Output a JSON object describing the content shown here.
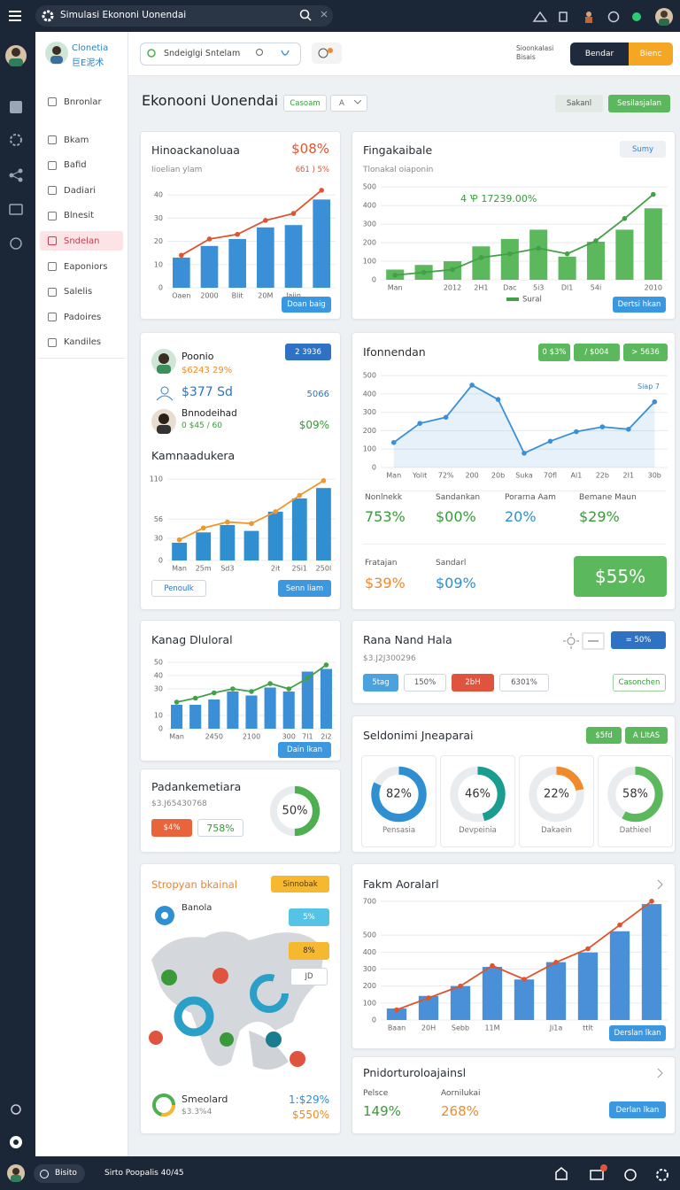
{
  "topbar": {
    "title": "Simulasi Ekononi Uonendai"
  },
  "sidebar": {
    "brand": "Clonetia",
    "brand_sub": "巨E泥术",
    "active": 5,
    "menu": [
      "Bnronlar",
      "Bkam",
      "Bafid",
      "Dadiari",
      "Blnesit",
      "Sndelan",
      "Eaponiors",
      "Salelis",
      "Padoires",
      "Kandiles"
    ]
  },
  "header": {
    "search": "Sndeiglgi Sntelam",
    "note": "Sioonkalasi Bisais",
    "buttons": [
      "Bendar",
      "Bienc"
    ]
  },
  "page": {
    "title": "Ekonooni Uonendai",
    "filter": "Casoam",
    "select": "A",
    "actions": [
      "Sakanl",
      "Sesilasjalan"
    ]
  },
  "profile_card": {
    "badge": "2 3936",
    "rows": [
      {
        "name": "Poonio",
        "value": "$6243 29%"
      },
      {
        "name": "$377 Sd",
        "value": "5066"
      },
      {
        "name": "Bnnodeihad",
        "value": "0 $45 / 60",
        "extra": "$09%"
      }
    ],
    "chart_title": "Kamnaadukera",
    "buttons": [
      "Penoulk",
      "Senn liam"
    ]
  },
  "stats_card": {
    "items": [
      {
        "label": "Nonlnekk",
        "value": "753%"
      },
      {
        "label": "Sandankan",
        "value": "$00%"
      },
      {
        "label": "Porarna Aam",
        "value": "20%"
      },
      {
        "label": "Bemane Maun",
        "value": "$29%"
      },
      {
        "label": "Fratajan",
        "value": "$39%"
      },
      {
        "label": "Sandarl",
        "value": "$09%"
      }
    ],
    "highlight": "$55%"
  },
  "padan_card": {
    "title": "Padankemetiara",
    "sub": "$3.J65430768",
    "chips": [
      "$4%",
      "758%"
    ]
  },
  "rana_card": {
    "title": "Rana Nand Hala",
    "sub": "$3.J2J300296",
    "chips": [
      "5tag",
      "150%",
      "2bH",
      "6301%"
    ],
    "button": "= 50%",
    "link": "Casonchen"
  },
  "seldon_card": {
    "title": "Seldonimi Jneaparai",
    "buttons": [
      "$5fd",
      "A LItAS"
    ]
  },
  "map_card": {
    "title": "Stropyan bkainal",
    "badge": "Sinnobak",
    "pin_label": "Banola",
    "chips": [
      "5%",
      "8%",
      "JD"
    ],
    "footer_name": "Smeolard",
    "footer_sub": "$3.3%4",
    "footer_values": [
      "1:$29%",
      "$550%"
    ]
  },
  "last_card": {
    "title": "Pnidorturoloajainsl",
    "items": [
      {
        "label": "Pelsce",
        "value": "149%"
      },
      {
        "label": "Aornilukai",
        "value": "268%"
      }
    ],
    "button": "Derlan lkan"
  },
  "charts": [
    {
      "type": "bar",
      "title": "Hinoackanoluaa",
      "kpi": "$08%",
      "subtitle": "Iioelian ylam",
      "legend_text": "6б1 ) 5%",
      "button": "Doan baig",
      "categories": [
        "Oaen",
        "2000",
        "Blit",
        "20M",
        "Jaiin",
        null
      ],
      "ylim": [
        0,
        45
      ],
      "yticks": [
        0,
        10,
        20,
        30,
        40
      ],
      "grid": true,
      "series": [
        {
          "color": "#3a8fd6",
          "values": [
            13,
            18,
            21,
            26,
            27,
            38
          ]
        },
        {
          "color": "#e0532f",
          "line": true,
          "values": [
            14,
            21,
            23,
            29,
            32,
            42
          ]
        }
      ]
    },
    {
      "type": "bar",
      "title": "Fingakaibale",
      "tag": "Sumy",
      "subtitle": "Tlonakal oiaponin",
      "annotation": "4 Ꝕ 17239.00%",
      "button": "Dertsi hkan",
      "legend": "bottom",
      "categories": [
        "Man",
        null,
        "2012",
        "2H1",
        "Dac",
        "5i3",
        "Dl1",
        "54i",
        null,
        "2010"
      ],
      "ylim": [
        0,
        520
      ],
      "yticks": [
        0,
        100,
        200,
        300,
        400,
        500
      ],
      "grid": true,
      "series": [
        {
          "color": "#5cb85c",
          "values": [
            55,
            80,
            100,
            180,
            220,
            270,
            125,
            205,
            270,
            385
          ]
        },
        {
          "name": "Sural",
          "color": "#43a047",
          "line": true,
          "values": [
            25,
            40,
            55,
            120,
            140,
            170,
            140,
            210,
            330,
            460
          ]
        }
      ]
    },
    {
      "type": "bar",
      "categories": [
        "Man",
        "25m",
        "Sd3",
        null,
        "2it",
        "2Si1",
        "250l"
      ],
      "ylim": [
        0,
        115
      ],
      "yticks": [
        0,
        30,
        56,
        110
      ],
      "grid": true,
      "series": [
        {
          "color": "#2f8fd0",
          "values": [
            24,
            38,
            48,
            40,
            66,
            84,
            98
          ]
        },
        {
          "color": "#f0962b",
          "line": true,
          "values": [
            28,
            44,
            52,
            50,
            66,
            88,
            108
          ]
        }
      ]
    },
    {
      "type": "line",
      "title": "Ifonnendan",
      "buttons": [
        "0 $3%",
        "/ $004",
        "> 5636"
      ],
      "annotation": "Siap 7",
      "area": true,
      "categories": [
        "Man",
        "Yolit",
        "72%",
        "200",
        "20b",
        "Suka",
        "70fl",
        "Al1",
        "22b",
        "2I1",
        "30b"
      ],
      "ylim": [
        0,
        520
      ],
      "yticks": [
        0,
        100,
        200,
        300,
        400,
        500
      ],
      "grid": true,
      "series": [
        {
          "color": "#3b8fd6",
          "line": true,
          "values": [
            136,
            240,
            273,
            448,
            370,
            78,
            143,
            195,
            221,
            208,
            357
          ]
        }
      ]
    },
    {
      "type": "bar",
      "title": "Kanag Dluloral",
      "button": "Dain lkan",
      "categories": [
        "Man",
        null,
        "2450",
        null,
        "2100",
        null,
        "300",
        "7l1",
        "2i2"
      ],
      "ylim": [
        0,
        52
      ],
      "yticks": [
        0,
        10,
        30,
        40,
        50
      ],
      "grid": true,
      "series": [
        {
          "color": "#3a8fd6",
          "values": [
            18,
            18,
            22,
            28,
            25,
            31,
            28,
            43,
            45
          ]
        },
        {
          "color": "#43a047",
          "line": true,
          "values": [
            20,
            23,
            27,
            30,
            28,
            34,
            30,
            38,
            48
          ]
        }
      ]
    },
    {
      "type": "bar",
      "title": "Fakm Aoralarl",
      "button": "Derslan lkan",
      "categories": [
        "Baan",
        "20H",
        "Sebb",
        "11M",
        null,
        "Ji1a",
        "ttlt",
        null,
        null
      ],
      "ylim": [
        0,
        720
      ],
      "yticks": [
        0,
        100,
        200,
        300,
        400,
        500,
        700
      ],
      "grid": true,
      "series": [
        {
          "color": "#4a90d9",
          "values": [
            68,
            142,
            200,
            313,
            239,
            341,
            398,
            523,
            683
          ]
        },
        {
          "color": "#e0532f",
          "line": true,
          "values": [
            60,
            130,
            200,
            320,
            240,
            340,
            420,
            560,
            700
          ]
        }
      ]
    },
    {
      "type": "donut",
      "categories": [
        "Pensasia",
        "Devpeinia",
        "Dakaein",
        "Dathieel"
      ],
      "values": [
        82,
        46,
        22,
        58
      ],
      "value_labels": [
        "82%",
        "46%",
        "22%",
        "58%"
      ],
      "colors": [
        "#2f8fd0",
        "#1a9c8f",
        "#f08a2b",
        "#5cb85c"
      ]
    },
    {
      "type": "donut",
      "categories": [
        null
      ],
      "values": [
        50
      ],
      "value_labels": [
        "50%"
      ],
      "colors": [
        "#4caf50"
      ]
    }
  ],
  "footer": {
    "user": "Bisito",
    "status": "Sirto Poopalis 40/45"
  }
}
